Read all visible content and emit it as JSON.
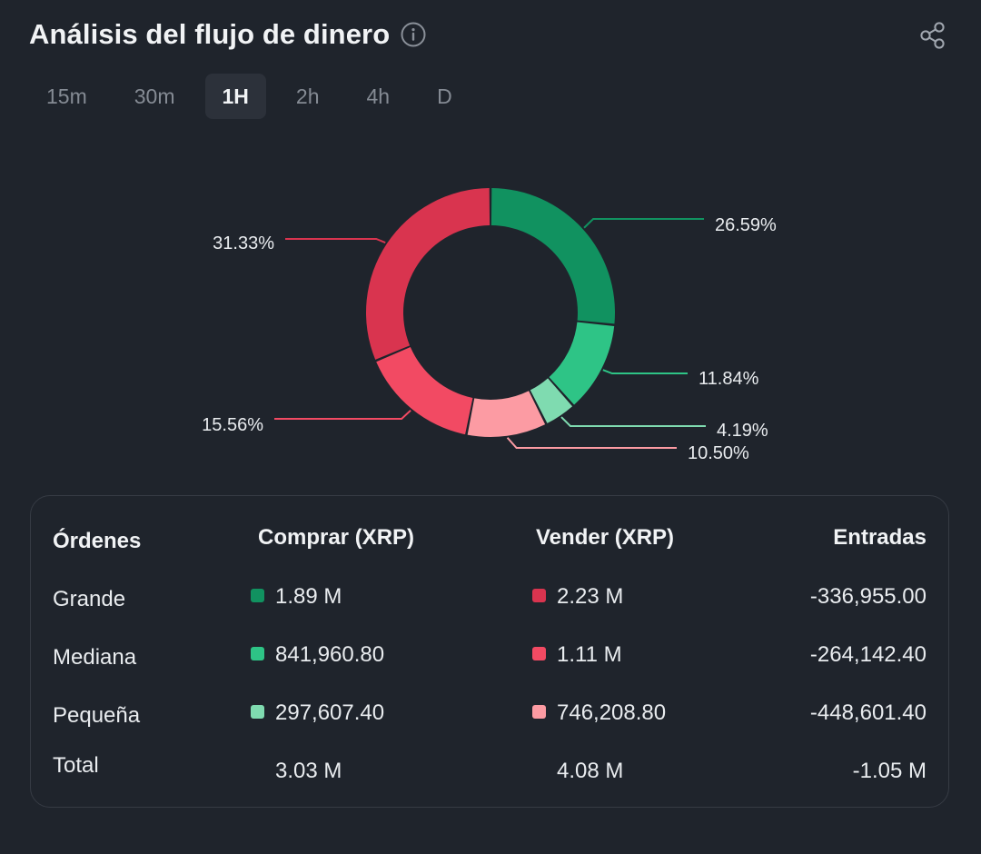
{
  "header": {
    "title": "Análisis del flujo de dinero",
    "info_icon": "info-circle-icon",
    "share_icon": "share-icon"
  },
  "tabs": [
    {
      "label": "15m",
      "active": false
    },
    {
      "label": "30m",
      "active": false
    },
    {
      "label": "1H",
      "active": true
    },
    {
      "label": "2h",
      "active": false
    },
    {
      "label": "4h",
      "active": false
    },
    {
      "label": "D",
      "active": false
    }
  ],
  "colors": {
    "buy_large": "#119260",
    "buy_medium": "#2ec486",
    "buy_small": "#7fdbb0",
    "sell_large": "#d9344f",
    "sell_medium": "#f24a63",
    "sell_small": "#fc9ba3",
    "background": "#1f242c"
  },
  "chart_data": {
    "type": "pie",
    "slices": [
      {
        "label": "26.59%",
        "value": 26.59,
        "color": "#119260"
      },
      {
        "label": "11.84%",
        "value": 11.84,
        "color": "#2ec486"
      },
      {
        "label": "4.19%",
        "value": 4.19,
        "color": "#7fdbb0"
      },
      {
        "label": "10.50%",
        "value": 10.5,
        "color": "#fc9ba3"
      },
      {
        "label": "15.56%",
        "value": 15.56,
        "color": "#f24a63"
      },
      {
        "label": "31.33%",
        "value": 31.33,
        "color": "#d9344f"
      }
    ]
  },
  "table": {
    "headers": {
      "orders": "Órdenes",
      "buy": "Comprar (XRP)",
      "sell": "Vender (XRP)",
      "inflow": "Entradas"
    },
    "rows": [
      {
        "label": "Grande",
        "buy": "1.89 M",
        "sell": "2.23 M",
        "inflow": "-336,955.00",
        "buy_color": "#119260",
        "sell_color": "#d9344f"
      },
      {
        "label": "Mediana",
        "buy": "841,960.80",
        "sell": "1.11 M",
        "inflow": "-264,142.40",
        "buy_color": "#2ec486",
        "sell_color": "#f24a63"
      },
      {
        "label": "Pequeña",
        "buy": "297,607.40",
        "sell": "746,208.80",
        "inflow": "-448,601.40",
        "buy_color": "#7fdbb0",
        "sell_color": "#fc9ba3"
      }
    ],
    "total": {
      "label": "Total",
      "buy": "3.03 M",
      "sell": "4.08 M",
      "inflow": "-1.05 M"
    }
  }
}
